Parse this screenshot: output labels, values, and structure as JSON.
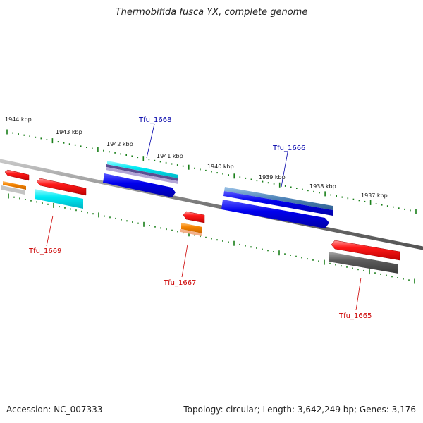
{
  "title": "Thermobifida fusca YX, complete genome",
  "accession_text": "Accession: NC_007333",
  "footer_text": "Topology: circular; Length: 3,642,249 bp; Genes: 3,176",
  "colors": {
    "backbone": "#7a7a7a",
    "tick": "#1a7f1a",
    "label_top": "#0000aa",
    "label_bottom": "#cc0000",
    "red": "#ee0000",
    "blue": "#0000ee",
    "cyan": "#00e5f0",
    "orange": "#f08000",
    "grey": "#5e5e5e",
    "steel": "#4f84b8",
    "purple": "#6a5aa0",
    "silver": "#b0b0b0"
  },
  "kbp_labels": [
    "1944 kbp",
    "1943 kbp",
    "1942 kbp",
    "1941 kbp",
    "1940 kbp",
    "1939 kbp",
    "1938 kbp",
    "1937 kbp"
  ],
  "gene_labels": {
    "tfu1669": "Tfu_1669",
    "tfu1668": "Tfu_1668",
    "tfu1667": "Tfu_1667",
    "tfu1666": "Tfu_1666",
    "tfu1665": "Tfu_1665"
  }
}
